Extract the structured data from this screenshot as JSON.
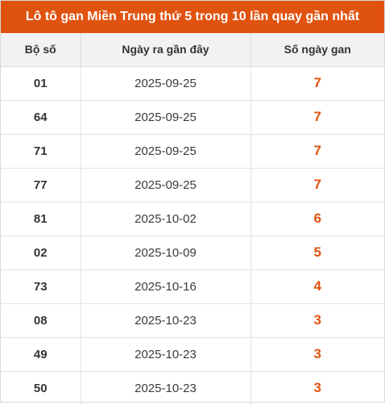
{
  "title": "Lô tô gan Miền Trung thứ 5 trong 10 lần quay gần nhất",
  "headers": [
    "Bộ số",
    "Ngày ra gần đây",
    "Số ngày gan"
  ],
  "rows": [
    {
      "so": "01",
      "ngay": "2025-09-25",
      "gan": "7"
    },
    {
      "so": "64",
      "ngay": "2025-09-25",
      "gan": "7"
    },
    {
      "so": "71",
      "ngay": "2025-09-25",
      "gan": "7"
    },
    {
      "so": "77",
      "ngay": "2025-09-25",
      "gan": "7"
    },
    {
      "so": "81",
      "ngay": "2025-10-02",
      "gan": "6"
    },
    {
      "so": "02",
      "ngay": "2025-10-09",
      "gan": "5"
    },
    {
      "so": "73",
      "ngay": "2025-10-16",
      "gan": "4"
    },
    {
      "so": "08",
      "ngay": "2025-10-23",
      "gan": "3"
    },
    {
      "so": "49",
      "ngay": "2025-10-23",
      "gan": "3"
    },
    {
      "so": "50",
      "ngay": "2025-10-23",
      "gan": "3"
    }
  ],
  "colors": {
    "accent": "#e0520f",
    "header_bg": "#f2f2f2"
  }
}
